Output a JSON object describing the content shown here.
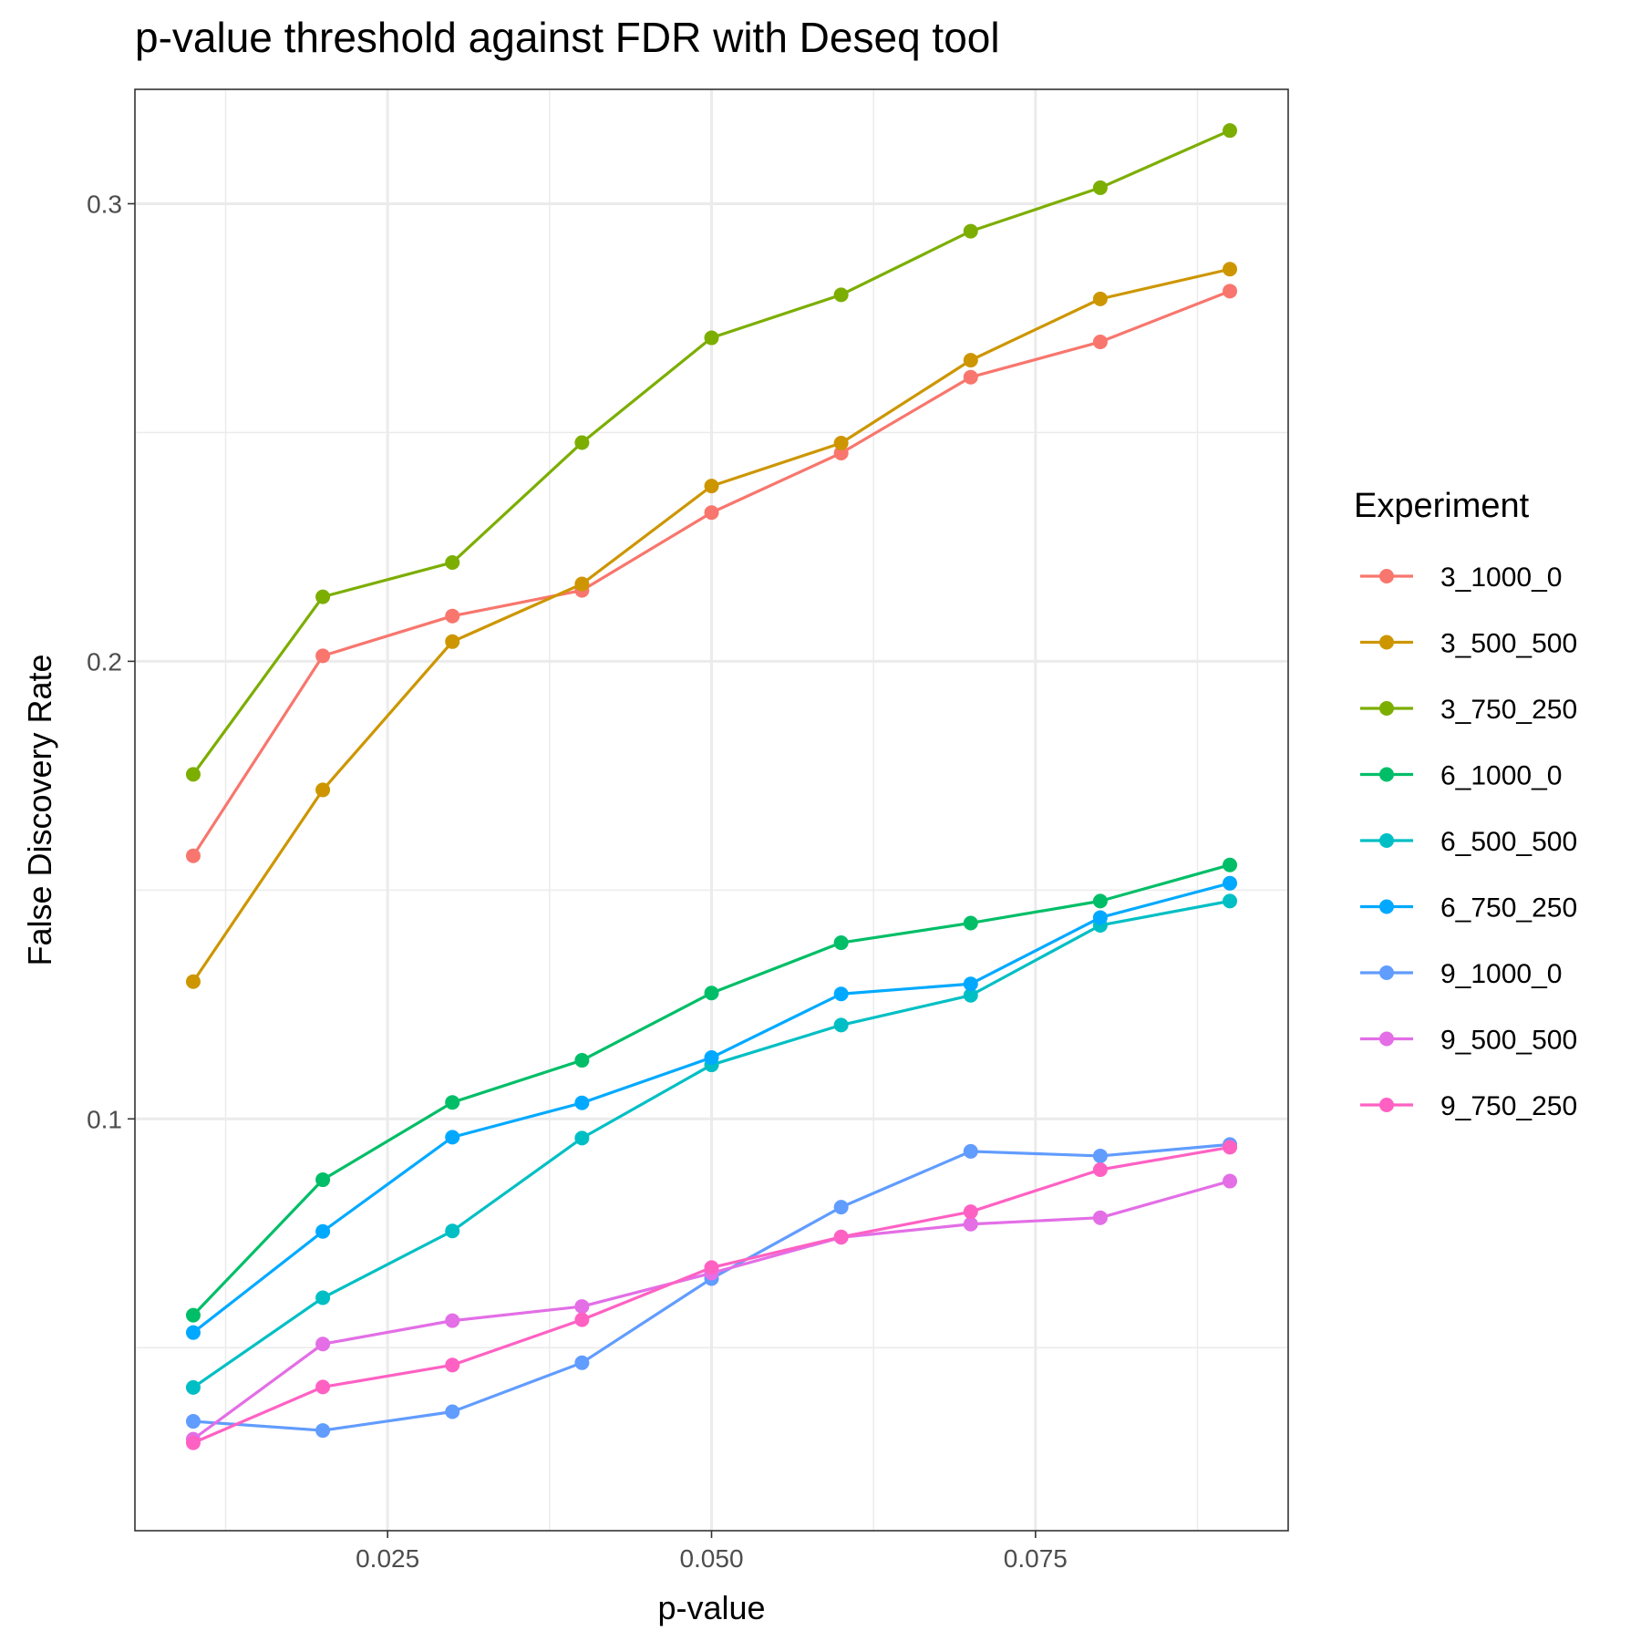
{
  "chart_data": {
    "type": "line",
    "title": "p-value threshold against FDR with Deseq tool",
    "xlabel": "p-value",
    "ylabel": "False Discovery Rate",
    "xlim": [
      0.0055,
      0.0945
    ],
    "ylim": [
      0.01,
      0.325
    ],
    "x_ticks": [
      0.025,
      0.05,
      0.075
    ],
    "x_tick_labels": [
      "0.025",
      "0.050",
      "0.075"
    ],
    "y_ticks": [
      0.1,
      0.2,
      0.3
    ],
    "y_tick_labels": [
      "0.1",
      "0.2",
      "0.3"
    ],
    "grid": true,
    "legend_title": "Experiment",
    "legend_position": "right",
    "x": [
      0.01,
      0.02,
      0.03,
      0.04,
      0.05,
      0.06,
      0.07,
      0.08,
      0.09
    ],
    "series": [
      {
        "name": "3_1000_0",
        "color": "#F8766D",
        "values": [
          0.1575,
          0.2012,
          0.2099,
          0.2155,
          0.2325,
          0.2455,
          0.2621,
          0.2698,
          0.2809
        ]
      },
      {
        "name": "3_500_500",
        "color": "#CD9600",
        "values": [
          0.13,
          0.1719,
          0.2043,
          0.2169,
          0.2383,
          0.2477,
          0.2658,
          0.2792,
          0.2857
        ]
      },
      {
        "name": "3_750_250",
        "color": "#7CAE00",
        "values": [
          0.1753,
          0.2141,
          0.2216,
          0.2478,
          0.2707,
          0.2801,
          0.294,
          0.3035,
          0.316
        ]
      },
      {
        "name": "6_1000_0",
        "color": "#00BE67",
        "values": [
          0.0571,
          0.0867,
          0.1036,
          0.1128,
          0.1275,
          0.1385,
          0.1428,
          0.1476,
          0.1555
        ]
      },
      {
        "name": "6_500_500",
        "color": "#00BFC4",
        "values": [
          0.0413,
          0.0609,
          0.0755,
          0.0958,
          0.1118,
          0.1205,
          0.127,
          0.1423,
          0.1476
        ]
      },
      {
        "name": "6_750_250",
        "color": "#00A9FF",
        "values": [
          0.0533,
          0.0754,
          0.096,
          0.1035,
          0.1134,
          0.1273,
          0.1295,
          0.144,
          0.1515
        ]
      },
      {
        "name": "9_1000_0",
        "color": "#619CFF",
        "values": [
          0.0339,
          0.0319,
          0.036,
          0.0467,
          0.0651,
          0.0807,
          0.0929,
          0.0919,
          0.0944
        ]
      },
      {
        "name": "9_500_500",
        "color": "#E36EE6",
        "values": [
          0.03,
          0.0508,
          0.0559,
          0.059,
          0.0663,
          0.0741,
          0.077,
          0.0784,
          0.0864
        ]
      },
      {
        "name": "9_750_250",
        "color": "#FF61C3",
        "values": [
          0.0292,
          0.0414,
          0.0462,
          0.0561,
          0.0675,
          0.0742,
          0.0797,
          0.0889,
          0.0938
        ]
      }
    ]
  }
}
